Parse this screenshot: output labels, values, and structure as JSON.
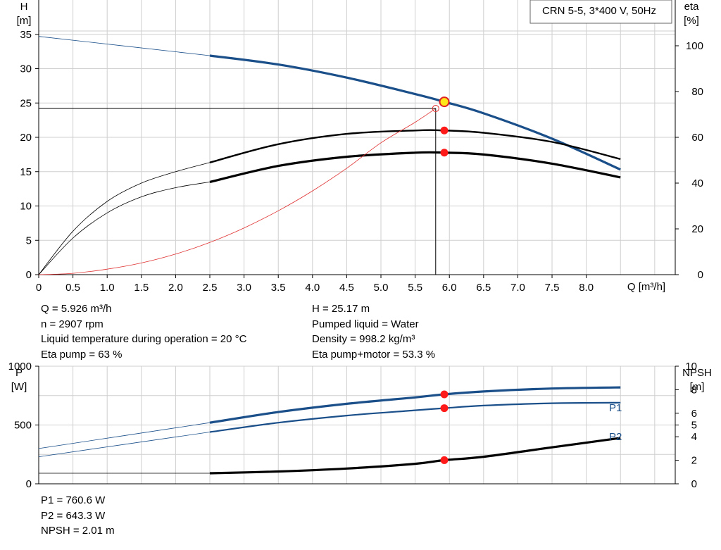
{
  "chart_data": [
    {
      "type": "line",
      "title": "CRN 5-5, 3*400 V, 50Hz",
      "xlabel": "Q [m³/h]",
      "ylabel_left_top": "H",
      "ylabel_left_unit": "[m]",
      "ylabel_right_top": "eta",
      "ylabel_right_unit": "[%]",
      "xlim": [
        0,
        9.3
      ],
      "ylim_left": [
        0,
        40
      ],
      "ylim_right": [
        0,
        120
      ],
      "x_ticks": [
        0,
        0.5,
        1.0,
        1.5,
        2.0,
        2.5,
        3.0,
        3.5,
        4.0,
        4.5,
        5.0,
        5.5,
        6.0,
        6.5,
        7.0,
        7.5,
        8.0
      ],
      "x_tick_labels": [
        "0",
        "0.5",
        "1.0",
        "1.5",
        "2.0",
        "2.5",
        "3.0",
        "3.5",
        "4.0",
        "4.5",
        "5.0",
        "5.5",
        "6.0",
        "6.5",
        "7.0",
        "7.5",
        "8.0"
      ],
      "y_left_ticks": [
        0,
        5,
        10,
        15,
        20,
        25,
        30,
        35
      ],
      "y_right_ticks": [
        0,
        20,
        40,
        60,
        80,
        100
      ],
      "grid": true,
      "series": [
        {
          "color": "#1a4f8a",
          "axis": "left",
          "thin_until": 2.5,
          "x": [
            0,
            2.5,
            3.5,
            4.5,
            5.5,
            5.926,
            6.5,
            7.5,
            8.5
          ],
          "y": [
            34.7,
            31.9,
            30.6,
            28.7,
            26.3,
            25.17,
            23.5,
            19.8,
            15.3
          ]
        },
        {
          "color": "#000000",
          "axis": "right",
          "thin_until": 2.5,
          "stroke": 2.4,
          "x": [
            0,
            0.5,
            1.0,
            1.5,
            2.0,
            2.5,
            3.5,
            4.5,
            5.5,
            5.926,
            6.5,
            7.5,
            8.5
          ],
          "y": [
            0,
            19,
            32,
            40,
            45,
            49,
            57,
            61.5,
            63,
            63,
            62,
            58,
            50.5
          ]
        },
        {
          "color": "#000000",
          "axis": "right",
          "thin_until": 2.5,
          "stroke": 3.2,
          "x": [
            0,
            0.5,
            1.0,
            1.5,
            2.0,
            2.5,
            3.5,
            4.5,
            5.5,
            5.926,
            6.5,
            7.5,
            8.5
          ],
          "y": [
            0,
            16,
            27,
            34,
            38,
            40.5,
            47.5,
            51.5,
            53.3,
            53.3,
            52.5,
            48.5,
            42.5
          ]
        },
        {
          "color": "#e03030",
          "axis": "left",
          "thin_until": 99,
          "stroke": 0.9,
          "x": [
            0,
            0.5,
            1.0,
            1.5,
            2.0,
            2.5,
            3.0,
            3.5,
            4.0,
            4.5,
            5.0,
            5.5,
            5.8
          ],
          "y": [
            0,
            0.2,
            0.8,
            1.7,
            3.0,
            4.7,
            6.8,
            9.3,
            12.2,
            15.5,
            19.2,
            22.2,
            24.2
          ]
        }
      ],
      "operating_point": {
        "x": 5.926,
        "y": 25.17
      },
      "duty_point": {
        "x": 5.8,
        "y": 24.2
      },
      "eta_markers": [
        {
          "x": 5.926,
          "y": 63
        },
        {
          "x": 5.926,
          "y": 53.3
        }
      ]
    },
    {
      "type": "line",
      "ylabel_left_top": "P",
      "ylabel_left_unit": "[W]",
      "ylabel_right_top": "NPSH",
      "ylabel_right_unit": "[m]",
      "xlim": [
        0,
        9.3
      ],
      "ylim_left": [
        0,
        1000
      ],
      "ylim_right": [
        0,
        10
      ],
      "y_left_ticks": [
        0,
        500,
        1000
      ],
      "y_right_ticks": [
        0,
        2,
        4,
        5,
        6,
        8,
        10
      ],
      "grid": true,
      "series": [
        {
          "name": "P1",
          "color": "#1a4f8a",
          "axis": "left",
          "thin_until": 2.5,
          "stroke": 3.2,
          "x": [
            0,
            2.5,
            3.5,
            4.5,
            5.5,
            5.926,
            6.5,
            7.5,
            8.5
          ],
          "y": [
            300,
            520,
            610,
            680,
            735,
            760.6,
            785,
            810,
            820
          ]
        },
        {
          "name": "P2",
          "color": "#1a4f8a",
          "axis": "left",
          "thin_until": 2.5,
          "stroke": 2.2,
          "x": [
            0,
            2.5,
            3.5,
            4.5,
            5.5,
            5.926,
            6.5,
            7.5,
            8.5
          ],
          "y": [
            230,
            440,
            520,
            580,
            625,
            643.3,
            665,
            685,
            690
          ]
        },
        {
          "name": "NPSH",
          "color": "#000000",
          "axis": "right",
          "thin_until": 2.5,
          "stroke": 3.2,
          "x": [
            0,
            2.5,
            3.5,
            4.5,
            5.5,
            5.926,
            6.5,
            7.5,
            8.5
          ],
          "y": [
            0.9,
            0.9,
            1.05,
            1.3,
            1.7,
            2.01,
            2.3,
            3.1,
            3.9
          ]
        }
      ],
      "markers": [
        {
          "x": 5.926,
          "y": 760.6,
          "axis": "left"
        },
        {
          "x": 5.926,
          "y": 643.3,
          "axis": "left"
        },
        {
          "x": 5.926,
          "y": 2.01,
          "axis": "right"
        }
      ]
    }
  ],
  "info_upper_left": [
    "Q = 5.926 m³/h",
    "n = 2907 rpm",
    "Liquid temperature during operation = 20 °C",
    "Eta pump = 63 %"
  ],
  "info_upper_right": [
    "H = 25.17 m",
    "Pumped liquid = Water",
    "Density = 998.2 kg/m³",
    "Eta pump+motor = 53.3 %"
  ],
  "info_lower_left": [
    "P1 = 760.6 W",
    "P2 = 643.3 W",
    "NPSH = 2.01 m"
  ]
}
